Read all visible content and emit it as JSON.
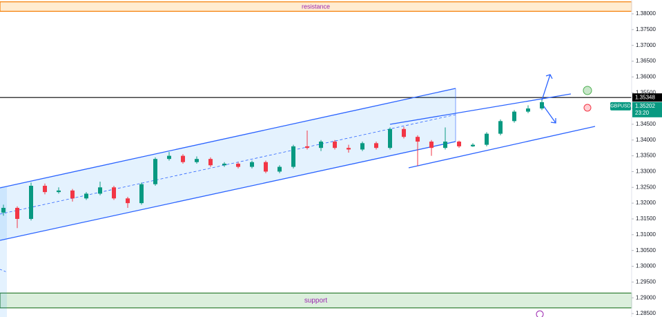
{
  "chart_data": {
    "type": "candlestick",
    "open": [
      1.317,
      1.3185,
      1.315,
      1.3255,
      1.3235,
      1.324,
      1.3215,
      1.323,
      1.325,
      1.3215,
      1.32,
      1.326,
      1.334,
      1.335,
      1.333,
      1.334,
      1.332,
      1.3325,
      1.3315,
      1.333,
      1.33,
      1.3315,
      1.338,
      1.3375,
      1.3395,
      1.3375,
      1.337,
      1.339,
      1.3375,
      1.3435,
      1.341,
      1.3395,
      1.3375,
      1.3395,
      1.338,
      1.3385,
      1.342,
      1.346,
      1.349,
      1.35
    ],
    "high": [
      1.3195,
      1.319,
      1.3265,
      1.3262,
      1.325,
      1.3245,
      1.3235,
      1.3268,
      1.3255,
      1.322,
      1.3265,
      1.3345,
      1.3362,
      1.3355,
      1.3348,
      1.3345,
      1.333,
      1.333,
      1.3335,
      1.3335,
      1.332,
      1.3385,
      1.343,
      1.34,
      1.34,
      1.3385,
      1.3395,
      1.3395,
      1.344,
      1.3442,
      1.3415,
      1.34,
      1.344,
      1.3398,
      1.339,
      1.3425,
      1.3465,
      1.3495,
      1.351,
      1.3528
    ],
    "low": [
      1.316,
      1.3121,
      1.3145,
      1.3228,
      1.323,
      1.3205,
      1.321,
      1.3225,
      1.321,
      1.3185,
      1.3195,
      1.3255,
      1.3335,
      1.3325,
      1.3325,
      1.3315,
      1.3315,
      1.331,
      1.331,
      1.3295,
      1.3295,
      1.331,
      1.337,
      1.3365,
      1.337,
      1.336,
      1.3365,
      1.337,
      1.337,
      1.3405,
      1.3318,
      1.335,
      1.337,
      1.3375,
      1.3378,
      1.338,
      1.3415,
      1.3455,
      1.3485,
      1.3495
    ],
    "close": [
      1.3185,
      1.315,
      1.3255,
      1.3235,
      1.324,
      1.3215,
      1.323,
      1.325,
      1.3215,
      1.32,
      1.326,
      1.334,
      1.335,
      1.333,
      1.334,
      1.332,
      1.3325,
      1.3315,
      1.333,
      1.33,
      1.3315,
      1.338,
      1.3375,
      1.3395,
      1.3375,
      1.337,
      1.339,
      1.3375,
      1.3435,
      1.341,
      1.3395,
      1.3375,
      1.3395,
      1.338,
      1.3385,
      1.342,
      1.346,
      1.349,
      1.35,
      1.352
    ],
    "up_color": "#089981",
    "down_color": "#f23645",
    "ylim": [
      1.28391,
      1.38438
    ],
    "yticks": [
      {
        "value": 1.285,
        "label": "1.28500"
      },
      {
        "value": 1.29,
        "label": "1.29000"
      },
      {
        "value": 1.295,
        "label": "1.29500"
      },
      {
        "value": 1.3,
        "label": "1.30000"
      },
      {
        "value": 1.305,
        "label": "1.30500"
      },
      {
        "value": 1.31,
        "label": "1.31000"
      },
      {
        "value": 1.315,
        "label": "1.31500"
      },
      {
        "value": 1.32,
        "label": "1.32000"
      },
      {
        "value": 1.325,
        "label": "1.32500"
      },
      {
        "value": 1.33,
        "label": "1.33000"
      },
      {
        "value": 1.335,
        "label": "1.33500"
      },
      {
        "value": 1.34,
        "label": "1.34000"
      },
      {
        "value": 1.345,
        "label": "1.34500"
      },
      {
        "value": 1.35,
        "label": "1.35000"
      },
      {
        "value": 1.355,
        "label": "1.35500"
      },
      {
        "value": 1.36,
        "label": "1.36000"
      },
      {
        "value": 1.365,
        "label": "1.36500"
      },
      {
        "value": 1.37,
        "label": "1.37000"
      },
      {
        "value": 1.375,
        "label": "1.37500"
      },
      {
        "value": 1.38,
        "label": "1.38000"
      }
    ],
    "resistance": {
      "label": "resistance",
      "range": [
        1.3808,
        1.3838
      ]
    },
    "support": {
      "label": "support",
      "range": [
        1.2868,
        1.2915
      ]
    },
    "level_line": 1.35348,
    "symbol": "GBPUSD",
    "last_price": 1.35202,
    "countdown": "23:20"
  }
}
